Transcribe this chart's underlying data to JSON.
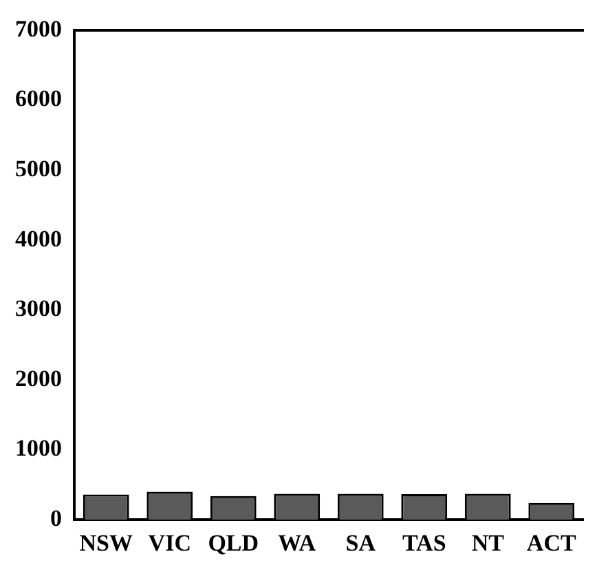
{
  "chart_data": {
    "type": "bar",
    "categories": [
      "NSW",
      "VIC",
      "QLD",
      "WA",
      "SA",
      "TAS",
      "NT",
      "ACT"
    ],
    "values": [
      360,
      400,
      340,
      370,
      370,
      365,
      370,
      240
    ],
    "color": "#5a5a5a",
    "ylim": [
      0,
      7000
    ],
    "yticks": [
      0,
      1000,
      2000,
      3000,
      4000,
      5000,
      6000,
      7000
    ],
    "grid": false,
    "legend": false
  }
}
